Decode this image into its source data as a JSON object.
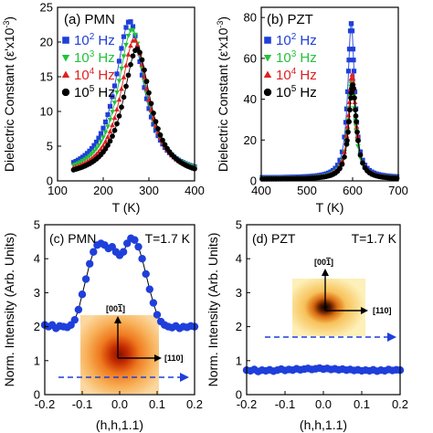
{
  "panels": [
    {
      "id": "a",
      "panel_label": "(a) PMN",
      "ylabel": "Dielectric Constant (ε'x10",
      "ylabel_sup": "-3",
      "ylabel_close": ")",
      "xlabel": "T (K)",
      "legend": [
        {
          "base": "10",
          "exp": "2",
          "unit": " Hz",
          "color": "#1f3fdb",
          "marker": "square"
        },
        {
          "base": "10",
          "exp": "3",
          "unit": " Hz",
          "color": "#22c33a",
          "marker": "triangle-down"
        },
        {
          "base": "10",
          "exp": "4",
          "unit": " Hz",
          "color": "#e02020",
          "marker": "triangle-up"
        },
        {
          "base": "10",
          "exp": "5",
          "unit": " Hz",
          "color": "#000000",
          "marker": "circle"
        }
      ]
    },
    {
      "id": "b",
      "panel_label": "(b) PZT",
      "ylabel": "Dielectric Constant (ε'x10",
      "ylabel_sup": "-3",
      "ylabel_close": ")",
      "xlabel": "T (K)",
      "legend": [
        {
          "base": "10",
          "exp": "2",
          "unit": " Hz",
          "color": "#1f3fdb",
          "marker": "square"
        },
        {
          "base": "10",
          "exp": "3",
          "unit": " Hz",
          "color": "#22c33a",
          "marker": "triangle-down"
        },
        {
          "base": "10",
          "exp": "4",
          "unit": " Hz",
          "color": "#e02020",
          "marker": "triangle-up"
        },
        {
          "base": "10",
          "exp": "5",
          "unit": " Hz",
          "color": "#000000",
          "marker": "circle"
        }
      ]
    },
    {
      "id": "c",
      "panel_label": "(c) PMN",
      "temp_label": "T=1.7 K",
      "ylabel": "Norm. Intensity (Arb. Units)",
      "xlabel": "(h,h,1.1)",
      "inset_v_label": "[00",
      "inset_v_bar": "1",
      "inset_v_close": "]",
      "inset_h_label": "[110]"
    },
    {
      "id": "d",
      "panel_label": "(d) PZT",
      "temp_label": "T=1.7 K",
      "ylabel": "Norm. Intensity (Arb. Units)",
      "xlabel": "(h,h,1.1)",
      "inset_v_label": "[00",
      "inset_v_bar": "1",
      "inset_v_close": "]",
      "inset_h_label": "[110]"
    }
  ],
  "chart_data": [
    {
      "type": "scatter",
      "panel": "a",
      "xlim": [
        100,
        400
      ],
      "ylim": [
        0,
        25
      ],
      "xticks": [
        100,
        200,
        300,
        400
      ],
      "yticks": [
        0,
        5,
        10,
        15,
        20,
        25
      ],
      "series": [
        {
          "name": "10^2 Hz",
          "color": "#1f3fdb",
          "marker": "square",
          "peak_x": 258,
          "peak_y": 23.0,
          "base_y": 0.6,
          "left_w": 58,
          "right_w": 55
        },
        {
          "name": "10^3 Hz",
          "color": "#22c33a",
          "marker": "triangle-down",
          "peak_x": 263,
          "peak_y": 21.8,
          "base_y": 0.5,
          "left_w": 57,
          "right_w": 55
        },
        {
          "name": "10^4 Hz",
          "color": "#e02020",
          "marker": "triangle-up",
          "peak_x": 268,
          "peak_y": 20.3,
          "base_y": 0.4,
          "left_w": 56,
          "right_w": 54
        },
        {
          "name": "10^5 Hz",
          "color": "#000000",
          "marker": "circle",
          "peak_x": 274,
          "peak_y": 19.0,
          "base_y": 0.3,
          "left_w": 56,
          "right_w": 54
        }
      ]
    },
    {
      "type": "scatter",
      "panel": "b",
      "xlim": [
        400,
        700
      ],
      "ylim": [
        0,
        85
      ],
      "xticks": [
        400,
        500,
        600,
        700
      ],
      "yticks": [
        0,
        20,
        40,
        60,
        80
      ],
      "series": [
        {
          "name": "10^2 Hz",
          "color": "#1f3fdb",
          "marker": "square",
          "peak_x": 597,
          "peak_y": 77,
          "base_y": 1.5,
          "width": 9
        },
        {
          "name": "10^3 Hz",
          "color": "#22c33a",
          "marker": "triangle-down",
          "peak_x": 598,
          "peak_y": 48,
          "base_y": 1.2,
          "width": 10
        },
        {
          "name": "10^4 Hz",
          "color": "#e02020",
          "marker": "triangle-up",
          "peak_x": 599,
          "peak_y": 52,
          "base_y": 1.0,
          "width": 10
        },
        {
          "name": "10^5 Hz",
          "color": "#000000",
          "marker": "circle",
          "peak_x": 600,
          "peak_y": 47,
          "base_y": 0.8,
          "width": 10
        }
      ]
    },
    {
      "type": "line",
      "panel": "c",
      "xlim": [
        -0.2,
        0.2
      ],
      "ylim": [
        0,
        5
      ],
      "xticks": [
        -0.2,
        -0.1,
        0.0,
        0.1,
        0.2
      ],
      "xtick_labels": [
        "-0.2",
        "-0.1",
        "0.0",
        "0.1",
        "0.2"
      ],
      "yticks": [
        0,
        1,
        2,
        3,
        4,
        5
      ],
      "series": [
        {
          "color": "#1f3fdb",
          "x": [
            -0.2,
            -0.19,
            -0.18,
            -0.17,
            -0.16,
            -0.15,
            -0.14,
            -0.13,
            -0.12,
            -0.11,
            -0.1,
            -0.09,
            -0.08,
            -0.07,
            -0.06,
            -0.05,
            -0.04,
            -0.03,
            -0.02,
            -0.01,
            0.0,
            0.01,
            0.02,
            0.03,
            0.04,
            0.05,
            0.06,
            0.07,
            0.08,
            0.09,
            0.1,
            0.11,
            0.12,
            0.13,
            0.14,
            0.15,
            0.16,
            0.17,
            0.18,
            0.19,
            0.2
          ],
          "y": [
            2.05,
            2.0,
            2.05,
            1.95,
            2.02,
            2.0,
            1.98,
            2.05,
            2.2,
            2.5,
            2.95,
            3.4,
            3.85,
            4.2,
            4.4,
            4.45,
            4.4,
            4.3,
            4.35,
            4.2,
            4.1,
            4.2,
            4.45,
            4.6,
            4.55,
            4.35,
            4.0,
            3.55,
            3.1,
            2.7,
            2.35,
            2.15,
            2.05,
            2.0,
            1.97,
            2.02,
            1.95,
            2.0,
            1.98,
            2.02,
            2.0
          ]
        }
      ]
    },
    {
      "type": "line",
      "panel": "d",
      "xlim": [
        -0.2,
        0.2
      ],
      "ylim": [
        0,
        5
      ],
      "xticks": [
        -0.2,
        -0.1,
        0.0,
        0.1,
        0.2
      ],
      "xtick_labels": [
        "-0.2",
        "-0.1",
        "0.0",
        "0.1",
        "0.2"
      ],
      "yticks": [
        0,
        1,
        2,
        3,
        4,
        5
      ],
      "series": [
        {
          "color": "#1f3fdb",
          "x": [
            -0.2,
            -0.19,
            -0.18,
            -0.17,
            -0.16,
            -0.15,
            -0.14,
            -0.13,
            -0.12,
            -0.11,
            -0.1,
            -0.09,
            -0.08,
            -0.07,
            -0.06,
            -0.05,
            -0.04,
            -0.03,
            -0.02,
            -0.01,
            0.0,
            0.01,
            0.02,
            0.03,
            0.04,
            0.05,
            0.06,
            0.07,
            0.08,
            0.09,
            0.1,
            0.11,
            0.12,
            0.13,
            0.14,
            0.15,
            0.16,
            0.17,
            0.18,
            0.19,
            0.2
          ],
          "y": [
            0.72,
            0.7,
            0.74,
            0.68,
            0.72,
            0.7,
            0.73,
            0.69,
            0.72,
            0.75,
            0.71,
            0.74,
            0.72,
            0.76,
            0.73,
            0.75,
            0.77,
            0.74,
            0.76,
            0.78,
            0.75,
            0.77,
            0.74,
            0.76,
            0.73,
            0.75,
            0.72,
            0.74,
            0.71,
            0.73,
            0.7,
            0.72,
            0.7,
            0.73,
            0.69,
            0.72,
            0.7,
            0.74,
            0.71,
            0.73,
            0.72
          ]
        }
      ]
    }
  ]
}
